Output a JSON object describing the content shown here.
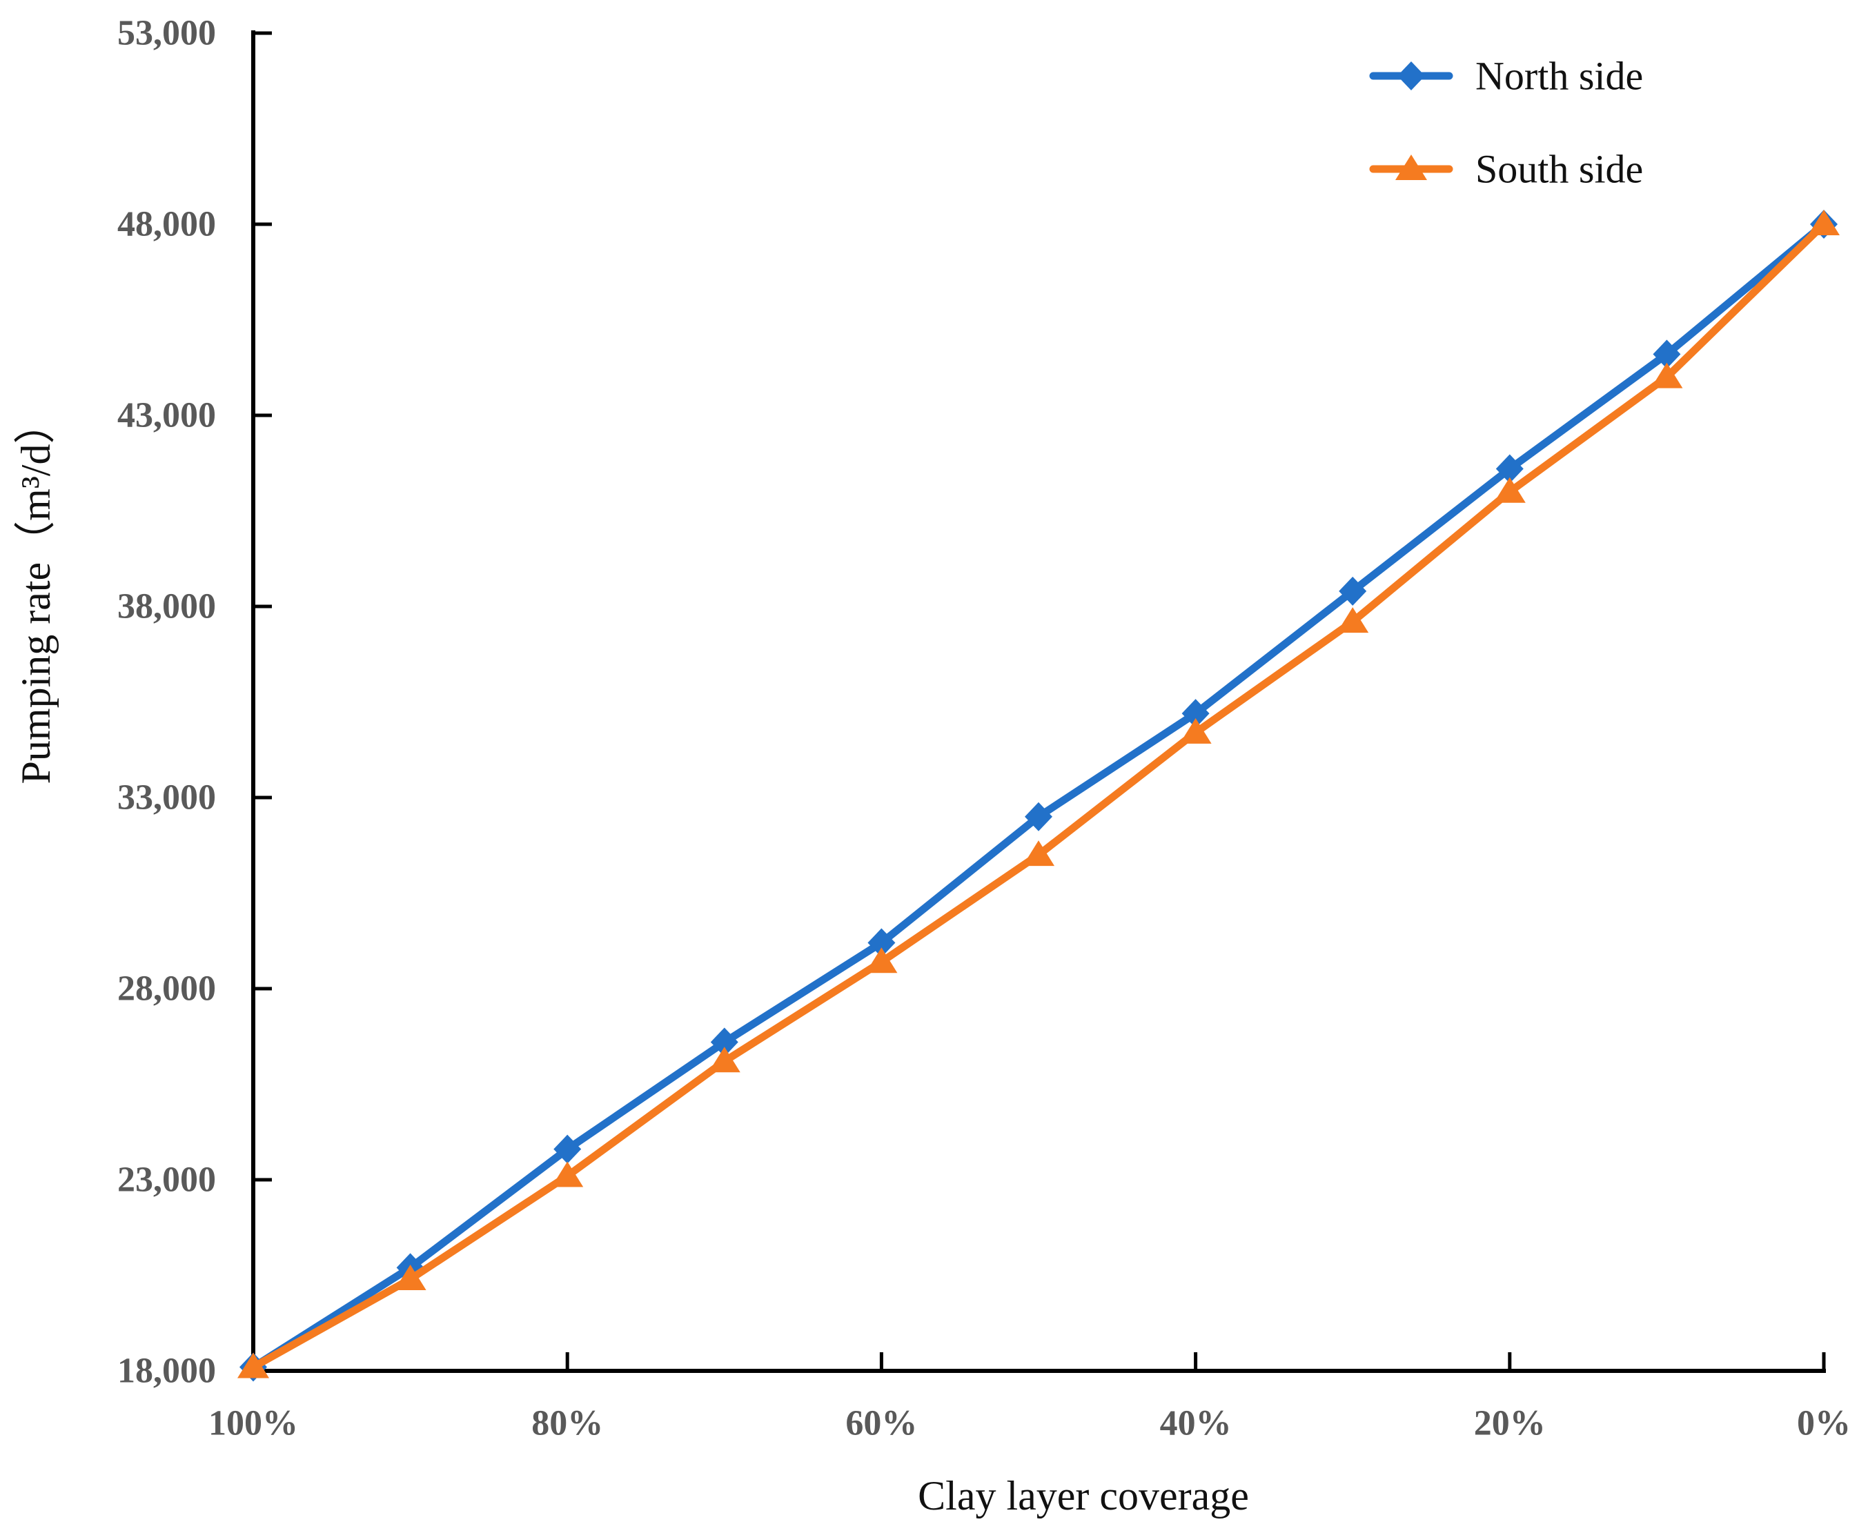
{
  "chart_data": {
    "type": "line",
    "title": "",
    "xlabel": "Clay layer coverage",
    "ylabel": "Pumping rate（m³/d）",
    "categories": [
      100,
      90,
      80,
      70,
      60,
      50,
      40,
      30,
      20,
      10,
      0
    ],
    "x_tick_labels": [
      {
        "value": 100,
        "label": "100%"
      },
      {
        "value": 80,
        "label": "80%"
      },
      {
        "value": 60,
        "label": "60%"
      },
      {
        "value": 40,
        "label": "40%"
      },
      {
        "value": 20,
        "label": "20%"
      },
      {
        "value": 0,
        "label": "0%"
      }
    ],
    "y_ticks": [
      {
        "value": 18000,
        "label": "18,000"
      },
      {
        "value": 23000,
        "label": "23,000"
      },
      {
        "value": 28000,
        "label": "28,000"
      },
      {
        "value": 33000,
        "label": "33,000"
      },
      {
        "value": 38000,
        "label": "38,000"
      },
      {
        "value": 43000,
        "label": "43,000"
      },
      {
        "value": 48000,
        "label": "48,000"
      },
      {
        "value": 53000,
        "label": "53,000"
      }
    ],
    "ylim": [
      18000,
      53000
    ],
    "grid": false,
    "legend_position": "top-right",
    "series": [
      {
        "name": "North side",
        "color": "#2271c9",
        "marker": "diamond",
        "values": [
          18100,
          20700,
          23800,
          26600,
          29200,
          32500,
          35200,
          38400,
          41600,
          44600,
          48000
        ]
      },
      {
        "name": "South side",
        "color": "#f57b20",
        "marker": "triangle",
        "values": [
          18100,
          20400,
          23100,
          26100,
          28700,
          31500,
          34700,
          37600,
          41000,
          44000,
          48000
        ]
      }
    ]
  },
  "colors": {
    "axis": "#000000",
    "tick_label": "#595959",
    "text": "#111111",
    "background": "#ffffff"
  }
}
